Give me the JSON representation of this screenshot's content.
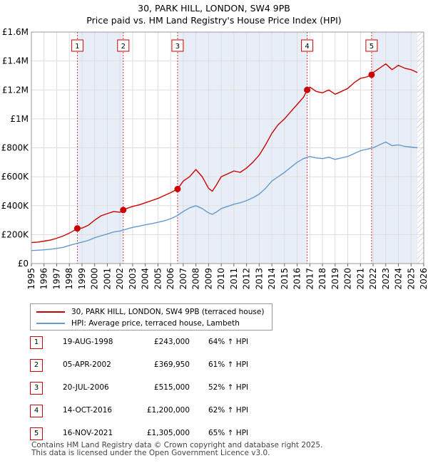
{
  "chart_data": {
    "type": "line",
    "title": "30, PARK HILL, LONDON, SW4 9PB",
    "subtitle": "Price paid vs. HM Land Registry's House Price Index (HPI)",
    "x_ticks": [
      "1995",
      "1996",
      "1997",
      "1998",
      "1999",
      "2000",
      "2001",
      "2002",
      "2003",
      "2004",
      "2005",
      "2006",
      "2007",
      "2008",
      "2009",
      "2010",
      "2011",
      "2012",
      "2013",
      "2014",
      "2015",
      "2016",
      "2017",
      "2018",
      "2019",
      "2020",
      "2021",
      "2022",
      "2023",
      "2024",
      "2025",
      "2026"
    ],
    "y_ticks": [
      {
        "value": 0,
        "label": "£0"
      },
      {
        "value": 200000,
        "label": "£200K"
      },
      {
        "value": 400000,
        "label": "£400K"
      },
      {
        "value": 600000,
        "label": "£600K"
      },
      {
        "value": 800000,
        "label": "£800K"
      },
      {
        "value": 1000000,
        "label": "£1M"
      },
      {
        "value": 1200000,
        "label": "£1.2M"
      },
      {
        "value": 1400000,
        "label": "£1.4M"
      },
      {
        "value": 1600000,
        "label": "£1.6M"
      }
    ],
    "xlim": [
      1995,
      2026
    ],
    "ylim": [
      0,
      1600000
    ],
    "grid": true,
    "data_end": 2025.5,
    "series": [
      {
        "name": "30, PARK HILL, LONDON, SW4 9PB (terraced house)",
        "color": "#cc0000",
        "x": [
          1995.0,
          1995.5,
          1996.0,
          1996.5,
          1997.0,
          1997.5,
          1998.0,
          1998.3,
          1998.63,
          1999.0,
          1999.5,
          2000.0,
          2000.5,
          2001.0,
          2001.5,
          2002.0,
          2002.26,
          2002.5,
          2003.0,
          2003.5,
          2004.0,
          2004.5,
          2005.0,
          2005.5,
          2006.0,
          2006.55,
          2007.0,
          2007.5,
          2008.0,
          2008.5,
          2009.0,
          2009.3,
          2009.6,
          2010.0,
          2010.5,
          2011.0,
          2011.5,
          2012.0,
          2012.5,
          2013.0,
          2013.5,
          2014.0,
          2014.5,
          2015.0,
          2015.5,
          2016.0,
          2016.5,
          2016.79,
          2017.0,
          2017.5,
          2018.0,
          2018.5,
          2019.0,
          2019.5,
          2020.0,
          2020.5,
          2021.0,
          2021.5,
          2021.88,
          2022.0,
          2022.5,
          2023.0,
          2023.5,
          2024.0,
          2024.5,
          2025.0,
          2025.5
        ],
        "values": [
          145000,
          148000,
          155000,
          162000,
          175000,
          190000,
          210000,
          225000,
          243000,
          245000,
          265000,
          300000,
          330000,
          345000,
          360000,
          355000,
          369950,
          380000,
          395000,
          405000,
          420000,
          435000,
          450000,
          470000,
          490000,
          515000,
          570000,
          600000,
          650000,
          600000,
          520000,
          500000,
          540000,
          600000,
          620000,
          640000,
          630000,
          660000,
          700000,
          750000,
          820000,
          900000,
          960000,
          1000000,
          1050000,
          1100000,
          1150000,
          1200000,
          1220000,
          1190000,
          1180000,
          1200000,
          1170000,
          1190000,
          1210000,
          1250000,
          1280000,
          1290000,
          1305000,
          1320000,
          1350000,
          1380000,
          1340000,
          1370000,
          1350000,
          1340000,
          1320000
        ]
      },
      {
        "name": "HPI: Average price, terraced house, Lambeth",
        "color": "#6699cc",
        "x": [
          1995.0,
          1995.5,
          1996.0,
          1996.5,
          1997.0,
          1997.5,
          1998.0,
          1998.5,
          1999.0,
          1999.5,
          2000.0,
          2000.5,
          2001.0,
          2001.5,
          2002.0,
          2002.5,
          2003.0,
          2003.5,
          2004.0,
          2004.5,
          2005.0,
          2005.5,
          2006.0,
          2006.5,
          2007.0,
          2007.5,
          2008.0,
          2008.5,
          2009.0,
          2009.3,
          2009.6,
          2010.0,
          2010.5,
          2011.0,
          2011.5,
          2012.0,
          2012.5,
          2013.0,
          2013.5,
          2014.0,
          2014.5,
          2015.0,
          2015.5,
          2016.0,
          2016.5,
          2017.0,
          2017.5,
          2018.0,
          2018.5,
          2019.0,
          2019.5,
          2020.0,
          2020.5,
          2021.0,
          2021.5,
          2022.0,
          2022.5,
          2023.0,
          2023.5,
          2024.0,
          2024.5,
          2025.0,
          2025.5
        ],
        "values": [
          90000,
          92000,
          95000,
          99000,
          105000,
          112000,
          125000,
          137000,
          148000,
          160000,
          178000,
          192000,
          205000,
          218000,
          225000,
          238000,
          250000,
          258000,
          268000,
          275000,
          285000,
          295000,
          310000,
          330000,
          360000,
          385000,
          400000,
          380000,
          350000,
          340000,
          355000,
          380000,
          395000,
          410000,
          420000,
          435000,
          455000,
          480000,
          520000,
          570000,
          600000,
          630000,
          665000,
          700000,
          725000,
          740000,
          730000,
          725000,
          735000,
          720000,
          730000,
          740000,
          760000,
          780000,
          790000,
          800000,
          820000,
          840000,
          815000,
          820000,
          810000,
          805000,
          800000
        ]
      }
    ],
    "sales": [
      {
        "num": "1",
        "x": 1998.63,
        "value": 243000
      },
      {
        "num": "2",
        "x": 2002.26,
        "value": 369950
      },
      {
        "num": "3",
        "x": 2006.55,
        "value": 515000
      },
      {
        "num": "4",
        "x": 2016.79,
        "value": 1200000
      },
      {
        "num": "5",
        "x": 2021.88,
        "value": 1305000
      }
    ],
    "shaded_periods": [
      [
        1998.63,
        2002.26
      ],
      [
        2006.55,
        2016.79
      ],
      [
        2021.88,
        2025.5
      ]
    ]
  },
  "legend": {
    "property_label": "30, PARK HILL, LONDON, SW4 9PB (terraced house)",
    "hpi_label": "HPI: Average price, terraced house, Lambeth",
    "property_color": "#cc0000",
    "hpi_color": "#6699cc"
  },
  "sales_table": [
    {
      "num": "1",
      "date": "19-AUG-1998",
      "price": "£243,000",
      "hpi": "64% ↑ HPI"
    },
    {
      "num": "2",
      "date": "05-APR-2002",
      "price": "£369,950",
      "hpi": "61% ↑ HPI"
    },
    {
      "num": "3",
      "date": "20-JUL-2006",
      "price": "£515,000",
      "hpi": "52% ↑ HPI"
    },
    {
      "num": "4",
      "date": "14-OCT-2016",
      "price": "£1,200,000",
      "hpi": "62% ↑ HPI"
    },
    {
      "num": "5",
      "date": "16-NOV-2021",
      "price": "£1,305,000",
      "hpi": "65% ↑ HPI"
    }
  ],
  "footer": {
    "line1": "Contains HM Land Registry data © Crown copyright and database right 2025.",
    "line2": "This data is licensed under the Open Government Licence v3.0."
  }
}
